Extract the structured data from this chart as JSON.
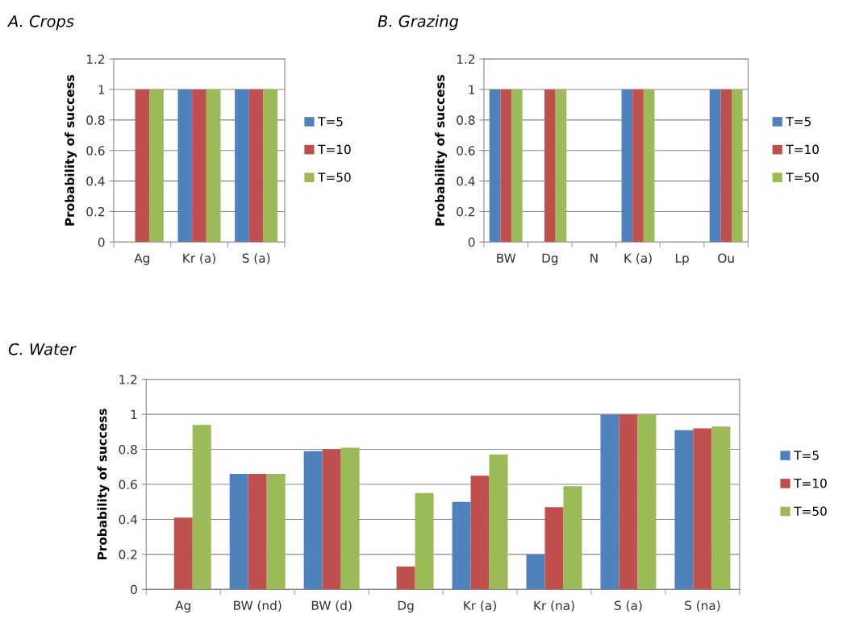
{
  "chart_data": [
    {
      "type": "bar",
      "title": "A. Crops",
      "ylabel": "Probability of success",
      "categories": [
        "Ag",
        "Kr (a)",
        "S (a)"
      ],
      "ylim": [
        0,
        1.2
      ],
      "yticks": [
        0,
        0.2,
        0.4,
        0.6,
        0.8,
        1,
        1.2
      ],
      "grid": "y",
      "legend": "right",
      "series": [
        {
          "name": "T=5",
          "color": "#4f81bd",
          "values": [
            0,
            1,
            1
          ]
        },
        {
          "name": "T=10",
          "color": "#c0504d",
          "values": [
            1,
            1,
            1
          ]
        },
        {
          "name": "T=50",
          "color": "#9bbb59",
          "values": [
            1,
            1,
            1
          ]
        }
      ]
    },
    {
      "type": "bar",
      "title": "B. Grazing",
      "ylabel": "Probability of success",
      "categories": [
        "BW",
        "Dg",
        "N",
        "K (a)",
        "Lp",
        "Ou"
      ],
      "ylim": [
        0,
        1.2
      ],
      "yticks": [
        0,
        0.2,
        0.4,
        0.6,
        0.8,
        1,
        1.2
      ],
      "grid": "y",
      "legend": "right",
      "series": [
        {
          "name": "T=5",
          "color": "#4f81bd",
          "values": [
            1,
            0,
            0,
            1,
            0,
            1
          ]
        },
        {
          "name": "T=10",
          "color": "#c0504d",
          "values": [
            1,
            1,
            0,
            1,
            0,
            1
          ]
        },
        {
          "name": "T=50",
          "color": "#9bbb59",
          "values": [
            1,
            1,
            0,
            1,
            0,
            1
          ]
        }
      ]
    },
    {
      "type": "bar",
      "title": "C. Water",
      "ylabel": "Probability of success",
      "categories": [
        "Ag",
        "BW (nd)",
        "BW (d)",
        "Dg",
        "Kr (a)",
        "Kr (na)",
        "S (a)",
        "S (na)"
      ],
      "ylim": [
        0,
        1.2
      ],
      "yticks": [
        0,
        0.2,
        0.4,
        0.6,
        0.8,
        1,
        1.2
      ],
      "grid": "y",
      "legend": "right",
      "series": [
        {
          "name": "T=5",
          "color": "#4f81bd",
          "values": [
            0,
            0.66,
            0.79,
            0,
            0.5,
            0.2,
            1,
            0.91
          ]
        },
        {
          "name": "T=10",
          "color": "#c0504d",
          "values": [
            0.41,
            0.66,
            0.8,
            0.13,
            0.65,
            0.47,
            1,
            0.92
          ]
        },
        {
          "name": "T=50",
          "color": "#9bbb59",
          "values": [
            0.94,
            0.66,
            0.81,
            0.55,
            0.77,
            0.59,
            1,
            0.93
          ]
        }
      ]
    }
  ]
}
